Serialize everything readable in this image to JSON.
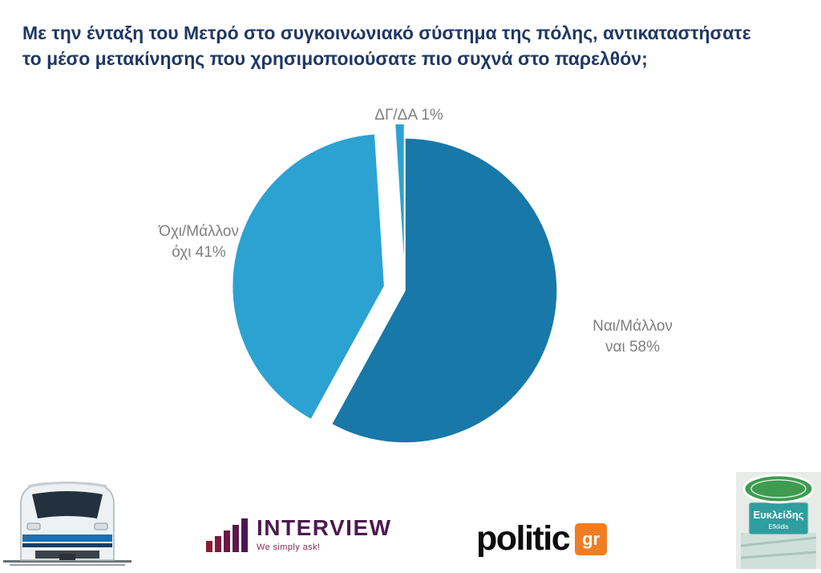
{
  "title": "Με την ένταξη του Μετρό στο συγκοινωνιακό σύστημα της πόλης, αντικαταστήσατε το μέσο μετακίνησης που χρησιμοποιούσατε πιο συχνά στο παρελθόν;",
  "title_lines": [
    "Με την ένταξη του Μετρό στο συγκοινωνιακό σύστημα της πόλης, αντικαταστήσατε",
    "το μέσο μετακίνησης που χρησιμοποιούσατε πιο συχνά στο παρελθόν;"
  ],
  "chart_data": {
    "type": "pie",
    "title": "Με την ένταξη του Μετρό στο συγκοινωνιακό σύστημα της πόλης, αντικαταστήσατε το μέσο μετακίνησης που χρησιμοποιούσατε πιο συχνά στο παρελθόν;",
    "labels": [
      "Ναι/Μάλλον ναι",
      "Όχι/Μάλλον όχι",
      "ΔΓ/ΔΑ"
    ],
    "values": [
      58,
      41,
      1
    ],
    "unit": "%",
    "colors": [
      "#1878A8",
      "#2CA2D2",
      "#2CA2D2"
    ],
    "legend_position": "none",
    "start_angle_deg": 0,
    "direction": "clockwise",
    "label_lines": {
      "nai": [
        "Ναι/Μάλλον",
        "ναι 58%"
      ],
      "ohi": [
        "Όχι/Μάλλον",
        "όχι 41%"
      ],
      "dgda": [
        "ΔΓ/ΔΑ 1%"
      ]
    }
  },
  "footer": {
    "interview": {
      "name": "INTERVIEW",
      "tagline": "We simply ask!"
    },
    "politic": {
      "name": "politic",
      "tld": "gr"
    },
    "station_sign": {
      "station_greek": "Ευκλείδης",
      "station_latin": "Efklidis"
    }
  },
  "colors": {
    "title_navy": "#1F3864",
    "label_gray": "#7F7F7F",
    "slice_main": "#1878A8",
    "slice_light": "#2CA2D2",
    "politic_orange": "#F07D22",
    "interview_plum": "#4C1B4F"
  }
}
